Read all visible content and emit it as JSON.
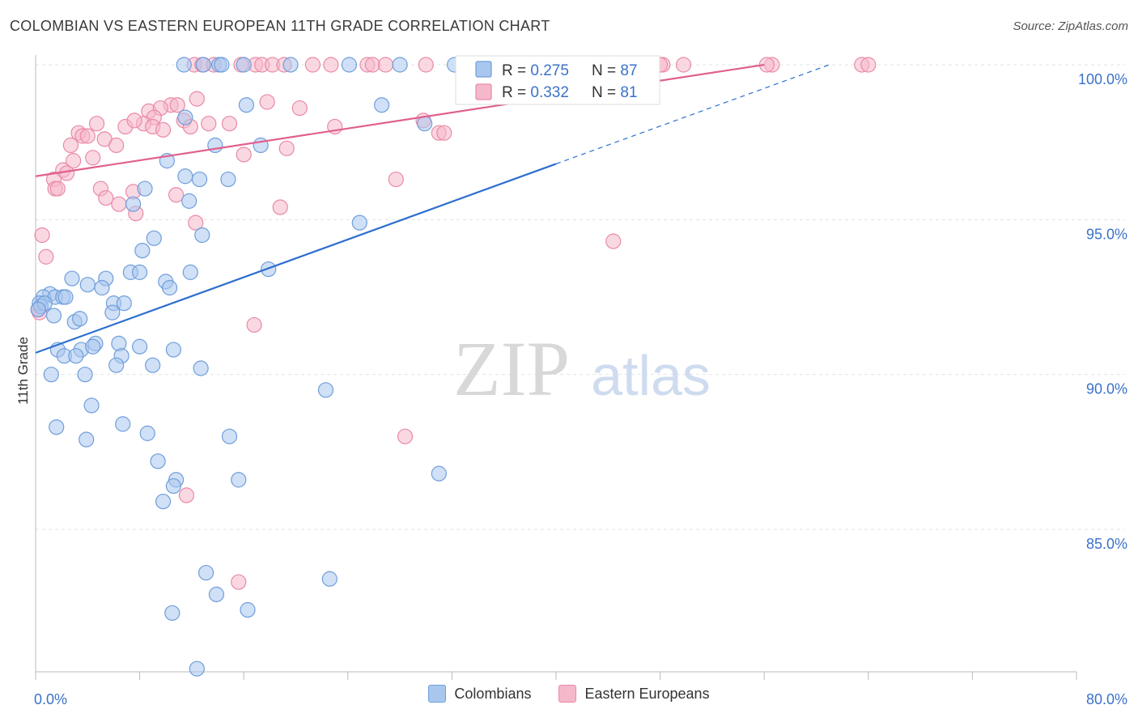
{
  "title": "COLOMBIAN VS EASTERN EUROPEAN 11TH GRADE CORRELATION CHART",
  "source": "Source: ZipAtlas.com",
  "watermark": {
    "zip": "ZIP",
    "atlas": "atlas"
  },
  "colors": {
    "blue_fill": "#a9c7ee",
    "blue_stroke": "#6f9edb",
    "blue_line": "#2c6fcf",
    "pink_fill": "#f5b8cb",
    "pink_stroke": "#e98aa6",
    "pink_line": "#e0608d",
    "value_text": "#3a72c9",
    "grid": "#e3e3e3"
  },
  "stats_box": [
    {
      "r_label": "R = ",
      "r_value": "0.275",
      "n_label": "N = ",
      "n_value": "87"
    },
    {
      "r_label": "R = ",
      "r_value": "0.332",
      "n_label": "N = ",
      "n_value": " 81"
    }
  ],
  "legend": [
    {
      "label": "Colombians"
    },
    {
      "label": "Eastern Europeans"
    }
  ],
  "chart_data": {
    "type": "scatter",
    "ylabel": "11th Grade",
    "xlim": [
      0,
      80
    ],
    "ylim": [
      80.5,
      100.6
    ],
    "x_tick_labels": [
      {
        "value": 0,
        "label": "0.0%"
      },
      {
        "value": 80,
        "label": "80.0%"
      }
    ],
    "y_tick_labels": [
      {
        "value": 100,
        "label": "100.0%"
      },
      {
        "value": 95,
        "label": "95.0%"
      },
      {
        "value": 90,
        "label": "90.0%"
      },
      {
        "value": 85,
        "label": "85.0%"
      }
    ],
    "grid": true,
    "legend_position": "bottom",
    "series": [
      {
        "name": "Colombians",
        "color": "blue",
        "R": 0.275,
        "N": 87,
        "trend": {
          "x0": 0,
          "y0": 90.7,
          "x1": 40,
          "y1": 96.8,
          "dash_to_x": 61,
          "dash_to_y": 100
        },
        "points": [
          [
            11.4,
            100
          ],
          [
            12.9,
            100
          ],
          [
            14.1,
            100
          ],
          [
            14.3,
            100
          ],
          [
            16.0,
            100
          ],
          [
            19.6,
            100
          ],
          [
            24.1,
            100
          ],
          [
            28.0,
            100
          ],
          [
            32.2,
            100
          ],
          [
            36.8,
            100
          ],
          [
            39.0,
            100
          ],
          [
            16.2,
            98.7
          ],
          [
            26.6,
            98.7
          ],
          [
            11.5,
            98.3
          ],
          [
            29.9,
            98.1
          ],
          [
            13.8,
            97.4
          ],
          [
            17.3,
            97.4
          ],
          [
            10.1,
            96.9
          ],
          [
            11.5,
            96.4
          ],
          [
            12.6,
            96.3
          ],
          [
            14.8,
            96.3
          ],
          [
            8.4,
            96.0
          ],
          [
            11.8,
            95.6
          ],
          [
            7.5,
            95.5
          ],
          [
            24.9,
            94.9
          ],
          [
            12.8,
            94.5
          ],
          [
            9.1,
            94.4
          ],
          [
            8.2,
            94.0
          ],
          [
            17.9,
            93.4
          ],
          [
            7.3,
            93.3
          ],
          [
            8.0,
            93.3
          ],
          [
            11.9,
            93.3
          ],
          [
            2.8,
            93.1
          ],
          [
            5.4,
            93.1
          ],
          [
            4.0,
            92.9
          ],
          [
            5.1,
            92.8
          ],
          [
            10.0,
            93.0
          ],
          [
            10.3,
            92.8
          ],
          [
            1.1,
            92.6
          ],
          [
            0.6,
            92.5
          ],
          [
            1.5,
            92.5
          ],
          [
            2.1,
            92.5
          ],
          [
            2.3,
            92.5
          ],
          [
            0.3,
            92.3
          ],
          [
            0.4,
            92.2
          ],
          [
            0.7,
            92.3
          ],
          [
            6.0,
            92.3
          ],
          [
            6.8,
            92.3
          ],
          [
            5.9,
            92.0
          ],
          [
            1.4,
            91.9
          ],
          [
            3.0,
            91.7
          ],
          [
            3.4,
            91.8
          ],
          [
            4.6,
            91.0
          ],
          [
            6.4,
            91.0
          ],
          [
            8.0,
            90.9
          ],
          [
            1.7,
            90.8
          ],
          [
            3.5,
            90.8
          ],
          [
            4.4,
            90.9
          ],
          [
            10.6,
            90.8
          ],
          [
            2.2,
            90.6
          ],
          [
            3.1,
            90.6
          ],
          [
            6.6,
            90.6
          ],
          [
            6.2,
            90.3
          ],
          [
            9.0,
            90.3
          ],
          [
            12.7,
            90.2
          ],
          [
            22.3,
            89.5
          ],
          [
            1.2,
            90.0
          ],
          [
            3.8,
            90.0
          ],
          [
            4.3,
            89.0
          ],
          [
            1.6,
            88.3
          ],
          [
            6.7,
            88.4
          ],
          [
            8.6,
            88.1
          ],
          [
            3.9,
            87.9
          ],
          [
            14.9,
            88.0
          ],
          [
            9.4,
            87.2
          ],
          [
            10.8,
            86.6
          ],
          [
            10.6,
            86.4
          ],
          [
            15.6,
            86.6
          ],
          [
            31.0,
            86.8
          ],
          [
            9.8,
            85.9
          ],
          [
            13.1,
            83.6
          ],
          [
            22.6,
            83.4
          ],
          [
            13.9,
            82.9
          ],
          [
            10.5,
            82.3
          ],
          [
            16.3,
            82.4
          ],
          [
            12.4,
            80.5
          ],
          [
            0.2,
            92.1
          ]
        ]
      },
      {
        "name": "Eastern Europeans",
        "color": "pink",
        "R": 0.332,
        "N": 81,
        "trend": {
          "x0": 0,
          "y0": 96.4,
          "x1": 56,
          "y1": 100
        },
        "points": [
          [
            12.2,
            100
          ],
          [
            12.8,
            100
          ],
          [
            13.7,
            100
          ],
          [
            15.8,
            100
          ],
          [
            16.9,
            100
          ],
          [
            17.4,
            100
          ],
          [
            18.2,
            100
          ],
          [
            19.1,
            100
          ],
          [
            21.3,
            100
          ],
          [
            22.7,
            100
          ],
          [
            25.5,
            100
          ],
          [
            25.9,
            100
          ],
          [
            30.0,
            100
          ],
          [
            33.0,
            100
          ],
          [
            34.4,
            100
          ],
          [
            42.6,
            100
          ],
          [
            48.2,
            100
          ],
          [
            49.8,
            100
          ],
          [
            56.6,
            100
          ],
          [
            63.5,
            100
          ],
          [
            64.0,
            100
          ],
          [
            12.4,
            98.9
          ],
          [
            17.8,
            98.8
          ],
          [
            20.3,
            98.6
          ],
          [
            10.4,
            98.7
          ],
          [
            8.7,
            98.5
          ],
          [
            9.6,
            98.6
          ],
          [
            9.1,
            98.3
          ],
          [
            11.4,
            98.2
          ],
          [
            4.7,
            98.1
          ],
          [
            8.3,
            98.1
          ],
          [
            9.0,
            98.0
          ],
          [
            6.9,
            98.0
          ],
          [
            14.9,
            98.1
          ],
          [
            29.8,
            98.2
          ],
          [
            31.0,
            97.8
          ],
          [
            9.8,
            97.9
          ],
          [
            11.9,
            98.0
          ],
          [
            3.3,
            97.8
          ],
          [
            3.6,
            97.7
          ],
          [
            4.0,
            97.7
          ],
          [
            5.3,
            97.6
          ],
          [
            6.2,
            97.4
          ],
          [
            2.7,
            97.4
          ],
          [
            19.3,
            97.3
          ],
          [
            16.0,
            97.1
          ],
          [
            4.4,
            97.0
          ],
          [
            2.9,
            96.9
          ],
          [
            2.1,
            96.6
          ],
          [
            2.4,
            96.5
          ],
          [
            27.7,
            96.3
          ],
          [
            1.4,
            96.3
          ],
          [
            1.5,
            96.0
          ],
          [
            1.7,
            96.0
          ],
          [
            5.0,
            96.0
          ],
          [
            7.5,
            95.9
          ],
          [
            10.8,
            95.8
          ],
          [
            5.4,
            95.7
          ],
          [
            6.4,
            95.5
          ],
          [
            18.8,
            95.4
          ],
          [
            7.7,
            95.2
          ],
          [
            12.3,
            94.9
          ],
          [
            44.4,
            94.3
          ],
          [
            0.5,
            94.5
          ],
          [
            0.8,
            93.8
          ],
          [
            16.8,
            91.6
          ],
          [
            0.3,
            92.0
          ],
          [
            0.2,
            92.1
          ],
          [
            28.4,
            88.0
          ],
          [
            11.6,
            86.1
          ],
          [
            15.6,
            83.3
          ],
          [
            48.0,
            100
          ],
          [
            36.2,
            100
          ],
          [
            26.9,
            100
          ],
          [
            40.3,
            100
          ],
          [
            56.2,
            100
          ],
          [
            10.9,
            98.7
          ],
          [
            7.6,
            98.2
          ],
          [
            13.3,
            98.1
          ],
          [
            31.4,
            97.8
          ],
          [
            23.0,
            98.0
          ]
        ]
      }
    ]
  }
}
